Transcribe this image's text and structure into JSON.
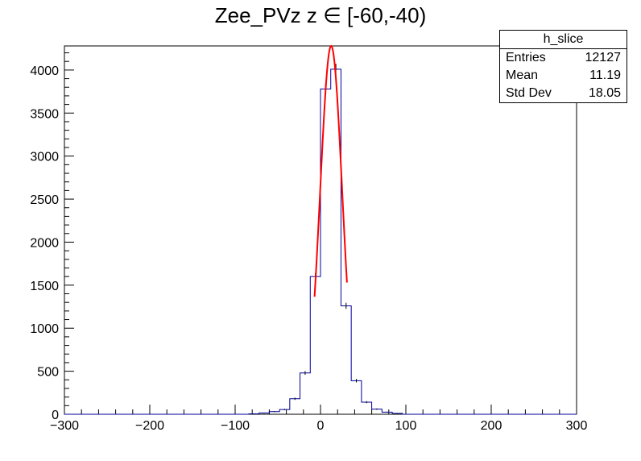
{
  "title": "Zee_PVz z  ∈ [-60,-40)",
  "stats": {
    "name": "h_slice",
    "rows": [
      {
        "label": "Entries",
        "value": "12127"
      },
      {
        "label": "Mean",
        "value": "11.19"
      },
      {
        "label": "Std Dev",
        "value": "18.05"
      }
    ]
  },
  "colors": {
    "histogram": "#000099",
    "fit": "#ff0000",
    "axis": "#000000",
    "background": "#ffffff"
  },
  "chart_data": {
    "type": "histogram",
    "title": "Zee_PVz z  ∈ [-60,-40)",
    "xlabel": "",
    "ylabel": "",
    "xlim": [
      -300,
      300
    ],
    "ylim": [
      0,
      4280
    ],
    "grid": false,
    "legend": "stats box top-right",
    "x_ticks": [
      -300,
      -200,
      -100,
      0,
      100,
      200,
      300
    ],
    "x_tick_labels": [
      "−300",
      "−200",
      "−100",
      "0",
      "100",
      "200",
      "300"
    ],
    "y_ticks": [
      0,
      500,
      1000,
      1500,
      2000,
      2500,
      3000,
      3500,
      4000
    ],
    "y_tick_labels": [
      "0",
      "500",
      "1000",
      "1500",
      "2000",
      "2500",
      "3000",
      "3500",
      "4000"
    ],
    "bin_width": 12,
    "bins": [
      {
        "low": -84,
        "value": 5
      },
      {
        "low": -72,
        "value": 15
      },
      {
        "low": -60,
        "value": 30
      },
      {
        "low": -48,
        "value": 55
      },
      {
        "low": -36,
        "value": 180
      },
      {
        "low": -24,
        "value": 480
      },
      {
        "low": -12,
        "value": 1600
      },
      {
        "low": 0,
        "value": 3780
      },
      {
        "low": 12,
        "value": 4010
      },
      {
        "low": 24,
        "value": 1260
      },
      {
        "low": 36,
        "value": 390
      },
      {
        "low": 48,
        "value": 140
      },
      {
        "low": 60,
        "value": 60
      },
      {
        "low": 72,
        "value": 25
      },
      {
        "low": 84,
        "value": 10
      }
    ],
    "fit": {
      "name": "gaussian",
      "amplitude": 4280,
      "mean": 12.5,
      "sigma": 12.9,
      "range": [
        -7,
        31
      ]
    }
  }
}
